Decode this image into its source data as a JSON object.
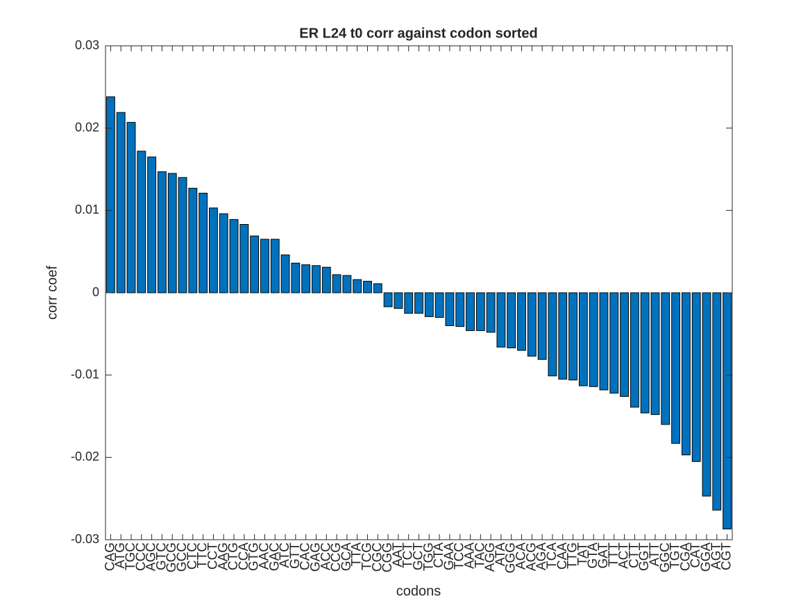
{
  "chart_data": {
    "type": "bar",
    "title": "ER L24 t0 corr against codon sorted",
    "x_label": "codons",
    "y_label": "corr coef",
    "categories": [
      "CAG",
      "ATG",
      "TGC",
      "CCC",
      "AGC",
      "GTC",
      "GCG",
      "GCC",
      "CTC",
      "TTC",
      "CCT",
      "AAG",
      "CTG",
      "CCA",
      "GTG",
      "AAC",
      "GAC",
      "ATC",
      "GTT",
      "CAC",
      "GAG",
      "ACC",
      "CCG",
      "GCA",
      "TTA",
      "TCG",
      "CGC",
      "CGG",
      "AAT",
      "TCT",
      "GCT",
      "TGG",
      "CTA",
      "GAA",
      "TCC",
      "AAA",
      "TAC",
      "AGG",
      "ATA",
      "GGG",
      "ACA",
      "ACG",
      "AGA",
      "TCA",
      "CAA",
      "TTG",
      "TAT",
      "GTA",
      "GAT",
      "TTT",
      "ACT",
      "CTT",
      "GGT",
      "ATT",
      "GGC",
      "TGT",
      "CGA",
      "CAT",
      "GGA",
      "AGT",
      "CGT"
    ],
    "values": [
      0.0238,
      0.0219,
      0.0207,
      0.0172,
      0.0165,
      0.0147,
      0.0145,
      0.014,
      0.0127,
      0.0121,
      0.0103,
      0.0096,
      0.0089,
      0.0083,
      0.0069,
      0.0065,
      0.0065,
      0.0046,
      0.0036,
      0.0034,
      0.0033,
      0.0031,
      0.0022,
      0.0021,
      0.0016,
      0.0014,
      0.0011,
      -0.0017,
      -0.0019,
      -0.0025,
      -0.0025,
      -0.0029,
      -0.003,
      -0.004,
      -0.0041,
      -0.0046,
      -0.0046,
      -0.0048,
      -0.0066,
      -0.0067,
      -0.007,
      -0.0077,
      -0.0081,
      -0.0101,
      -0.0105,
      -0.0106,
      -0.0113,
      -0.0114,
      -0.0118,
      -0.0122,
      -0.0126,
      -0.0139,
      -0.0146,
      -0.0148,
      -0.016,
      -0.0183,
      -0.0197,
      -0.0205,
      -0.0247,
      -0.0264,
      -0.0287
    ],
    "color": "#0072bd",
    "ylim": [
      -0.03,
      0.03
    ],
    "yticks": [
      -0.03,
      -0.02,
      -0.01,
      0,
      0.01,
      0.02,
      0.03
    ]
  }
}
